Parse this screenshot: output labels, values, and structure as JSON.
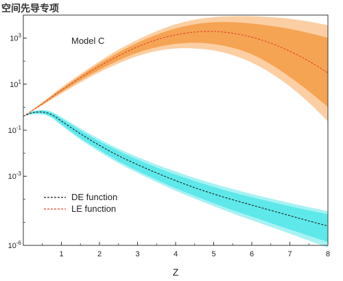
{
  "watermark": "空间先导专项",
  "chart_data": {
    "type": "area",
    "annotation": "Model C",
    "xlabel": "Z",
    "ylabel": "",
    "xlim": [
      0,
      8
    ],
    "ylim": [
      1e-06,
      10000.0
    ],
    "yscale": "log",
    "xticks": [
      1,
      2,
      3,
      4,
      5,
      6,
      7,
      8
    ],
    "yticks": [
      {
        "value": 1000.0,
        "base": "10",
        "exp": "3"
      },
      {
        "value": 10,
        "base": "10",
        "exp": "1"
      },
      {
        "value": 0.1,
        "base": "10",
        "exp": "-1"
      },
      {
        "value": 0.001,
        "base": "10",
        "exp": "-3"
      },
      {
        "value": 1e-06,
        "base": "10",
        "exp": "-6"
      }
    ],
    "legend_position": "bottom-left",
    "series": [
      {
        "name": "DE function",
        "color": "#1a1a1a",
        "band_color_inner": "#5ee8ea",
        "band_color_outer": "#a8f2f3",
        "x": [
          0,
          0.2,
          0.4,
          0.6,
          0.8,
          1.0,
          1.5,
          2.0,
          2.5,
          3.0,
          3.5,
          4.0,
          4.5,
          5.0,
          5.5,
          6.0,
          6.5,
          7.0,
          7.5,
          8.0
        ],
        "y": [
          0.4,
          0.55,
          0.62,
          0.58,
          0.42,
          0.25,
          0.07,
          0.022,
          0.0078,
          0.0032,
          0.0014,
          0.00065,
          0.00032,
          0.00017,
          9.55e-05,
          5.62e-05,
          3.31e-05,
          1.95e-05,
          1.15e-05,
          6.9e-06
        ],
        "inner_upper": [
          0.4,
          0.6,
          0.7,
          0.68,
          0.52,
          0.33,
          0.1,
          0.033,
          0.0125,
          0.0053,
          0.0024,
          0.00118,
          0.00062,
          0.000345,
          0.0002,
          0.000123,
          7.76e-05,
          5.01e-05,
          3.31e-05,
          2.24e-05
        ],
        "inner_lower": [
          0.4,
          0.5,
          0.54,
          0.48,
          0.33,
          0.18,
          0.046,
          0.0138,
          0.0045,
          0.00173,
          0.00071,
          0.000302,
          0.000141,
          6.76e-05,
          3.39e-05,
          1.78e-05,
          9.3e-06,
          4.9e-06,
          2.6e-06,
          1.4e-06
        ],
        "outer_upper": [
          0.4,
          0.63,
          0.75,
          0.74,
          0.58,
          0.37,
          0.12,
          0.041,
          0.0158,
          0.0069,
          0.0032,
          0.00162,
          0.00085,
          0.000479,
          0.000281,
          0.00017,
          0.000107,
          6.92e-05,
          4.57e-05,
          3.09e-05
        ],
        "outer_lower": [
          0.4,
          0.48,
          0.5,
          0.44,
          0.3,
          0.16,
          0.039,
          0.0115,
          0.0037,
          0.0014,
          0.00056,
          0.000234,
          0.000107,
          5.01e-05,
          2.45e-05,
          1.23e-05,
          6.3e-06,
          3.2e-06,
          1.6e-06,
          8e-07
        ]
      },
      {
        "name": "LE function",
        "color": "#e0452a",
        "band_color_inner": "#f5a454",
        "band_color_outer": "#fbcfa3",
        "x": [
          0,
          0.5,
          1.0,
          1.5,
          2.0,
          2.5,
          3.0,
          3.5,
          4.0,
          4.5,
          5.0,
          5.5,
          6.0,
          6.5,
          7.0,
          7.5,
          8.0
        ],
        "y": [
          0.4,
          1.41,
          5.37,
          19.1,
          60.3,
          170,
          417,
          850,
          1380,
          1820,
          1950,
          1620,
          1100,
          603,
          269,
          100,
          30.9
        ],
        "inner_upper": [
          0.4,
          1.55,
          6.3,
          23.4,
          80,
          240,
          631,
          1410,
          2630,
          3980,
          4900,
          4900,
          4270,
          3390,
          2510,
          1660,
          1050
        ],
        "inner_lower": [
          0.4,
          1.3,
          4.5,
          14.5,
          41.7,
          107,
          234,
          398,
          562,
          631,
          550,
          380,
          200,
          72.4,
          20.4,
          4.9,
          1.02
        ],
        "outer_upper": [
          0.4,
          1.65,
          7.1,
          27.5,
          98,
          316,
          851,
          2000,
          3980,
          6310,
          8130,
          8910,
          8910,
          8130,
          6920,
          5250,
          3630
        ],
        "outer_lower": [
          0.4,
          1.22,
          3.9,
          11.8,
          33,
          79,
          166,
          275,
          355,
          355,
          290,
          182,
          87,
          30.2,
          7.94,
          1.58,
          0.245
        ]
      }
    ]
  }
}
